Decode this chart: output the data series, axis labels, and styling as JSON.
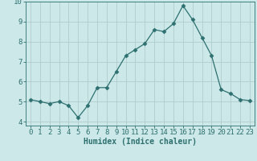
{
  "x": [
    0,
    1,
    2,
    3,
    4,
    5,
    6,
    7,
    8,
    9,
    10,
    11,
    12,
    13,
    14,
    15,
    16,
    17,
    18,
    19,
    20,
    21,
    22,
    23
  ],
  "y": [
    5.1,
    5.0,
    4.9,
    5.0,
    4.8,
    4.2,
    4.8,
    5.7,
    5.7,
    6.5,
    7.3,
    7.6,
    7.9,
    8.6,
    8.5,
    8.9,
    9.8,
    9.1,
    8.2,
    7.3,
    5.6,
    5.4,
    5.1,
    5.05
  ],
  "line_color": "#2e7070",
  "marker": "D",
  "marker_size": 2.5,
  "bg_color": "#cce8e8",
  "grid_color": "#b0cccc",
  "xlabel": "Humidex (Indice chaleur)",
  "ylim": [
    3.8,
    10.0
  ],
  "xlim": [
    -0.5,
    23.5
  ],
  "yticks": [
    4,
    5,
    6,
    7,
    8,
    9,
    10
  ],
  "xticks": [
    0,
    1,
    2,
    3,
    4,
    5,
    6,
    7,
    8,
    9,
    10,
    11,
    12,
    13,
    14,
    15,
    16,
    17,
    18,
    19,
    20,
    21,
    22,
    23
  ],
  "tick_color": "#2e7070",
  "label_fontsize": 7,
  "tick_fontsize": 6.5
}
